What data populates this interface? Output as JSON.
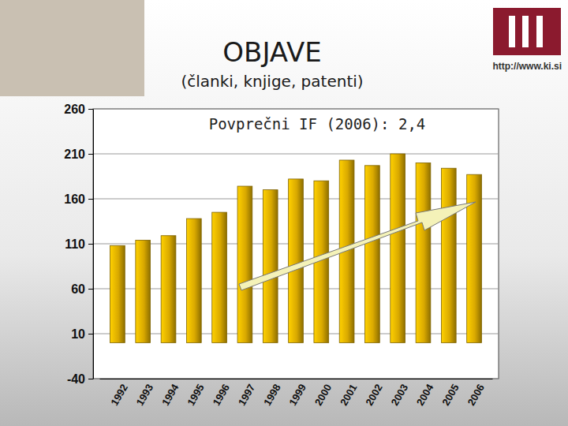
{
  "header": {
    "url": "http://www.ki.si"
  },
  "chart_data": {
    "type": "bar",
    "title": "OBJAVE",
    "subtitle": "(članki, knjige, patenti)",
    "annotation": "Povprečni IF (2006): 2,4",
    "categories": [
      "1992",
      "1993",
      "1994",
      "1995",
      "1996",
      "1997",
      "1998",
      "1999",
      "2000",
      "2001",
      "2002",
      "2003",
      "2004",
      "2005",
      "2006"
    ],
    "values": [
      108,
      114,
      119,
      138,
      145,
      174,
      170,
      182,
      180,
      203,
      197,
      210,
      200,
      194,
      187
    ],
    "color": "#d9a900",
    "ylim": [
      -40,
      260
    ],
    "yticks": [
      -40,
      10,
      60,
      110,
      160,
      210,
      260
    ],
    "grid": true
  }
}
